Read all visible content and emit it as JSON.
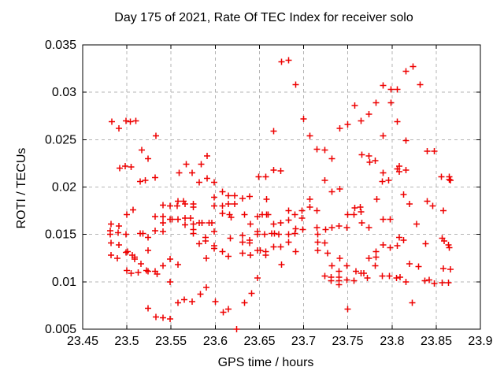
{
  "window": {
    "background": "#ffffff"
  },
  "chart_data": {
    "type": "scatter",
    "title": "Day 175 of 2021, Rate Of TEC Index for receiver solo",
    "xlabel": "GPS time / hours",
    "ylabel": "ROTI / TECUs",
    "xlim": [
      23.45,
      23.9
    ],
    "ylim": [
      0.005,
      0.035
    ],
    "xticks": [
      23.45,
      23.5,
      23.55,
      23.6,
      23.65,
      23.7,
      23.75,
      23.8,
      23.85,
      23.9
    ],
    "xtick_labels": [
      "23.45",
      "23.5",
      "23.55",
      "23.6",
      "23.65",
      "23.7",
      "23.75",
      "23.8",
      "23.85",
      "23.9"
    ],
    "yticks": [
      0.005,
      0.01,
      0.015,
      0.02,
      0.025,
      0.03,
      0.035
    ],
    "ytick_labels": [
      "0.005",
      "0.01",
      "0.015",
      "0.02",
      "0.025",
      "0.03",
      "0.035"
    ],
    "grid": true,
    "grid_style": "dashed",
    "legend": "none",
    "marker": "plus",
    "marker_color": "#ee0000",
    "grid_color": "#b4b4b4",
    "axis_color": "#000000",
    "series": [
      {
        "name": "ROTI",
        "points": [
          [
            23.481,
            0.0154
          ],
          [
            23.481,
            0.015
          ],
          [
            23.482,
            0.0161
          ],
          [
            23.482,
            0.0141
          ],
          [
            23.482,
            0.0128
          ],
          [
            23.483,
            0.0269
          ],
          [
            23.489,
            0.0125
          ],
          [
            23.49,
            0.0152
          ],
          [
            23.491,
            0.0262
          ],
          [
            23.491,
            0.0159
          ],
          [
            23.491,
            0.0139
          ],
          [
            23.492,
            0.022
          ],
          [
            23.498,
            0.0222
          ],
          [
            23.499,
            0.027
          ],
          [
            23.499,
            0.015
          ],
          [
            23.499,
            0.0131
          ],
          [
            23.5,
            0.0171
          ],
          [
            23.5,
            0.0112
          ],
          [
            23.501,
            0.0132
          ],
          [
            23.504,
            0.0269
          ],
          [
            23.505,
            0.0221
          ],
          [
            23.505,
            0.0109
          ],
          [
            23.506,
            0.0128
          ],
          [
            23.507,
            0.0176
          ],
          [
            23.509,
            0.0126
          ],
          [
            23.509,
            0.0124
          ],
          [
            23.51,
            0.027
          ],
          [
            23.513,
            0.011
          ],
          [
            23.515,
            0.0206
          ],
          [
            23.515,
            0.0151
          ],
          [
            23.516,
            0.0119
          ],
          [
            23.517,
            0.0239
          ],
          [
            23.518,
            0.0151
          ],
          [
            23.521,
            0.0207
          ],
          [
            23.522,
            0.0112
          ],
          [
            23.524,
            0.023
          ],
          [
            23.524,
            0.0147
          ],
          [
            23.524,
            0.0133
          ],
          [
            23.524,
            0.0111
          ],
          [
            23.524,
            0.0072
          ],
          [
            23.532,
            0.021
          ],
          [
            23.532,
            0.0169
          ],
          [
            23.532,
            0.0154
          ],
          [
            23.532,
            0.0111
          ],
          [
            23.533,
            0.0254
          ],
          [
            23.533,
            0.0063
          ],
          [
            23.534,
            0.0108
          ],
          [
            23.541,
            0.0181
          ],
          [
            23.541,
            0.0169
          ],
          [
            23.541,
            0.0162
          ],
          [
            23.541,
            0.0153
          ],
          [
            23.541,
            0.0117
          ],
          [
            23.541,
            0.0062
          ],
          [
            23.549,
            0.018
          ],
          [
            23.549,
            0.0166
          ],
          [
            23.549,
            0.0124
          ],
          [
            23.549,
            0.01
          ],
          [
            23.549,
            0.0061
          ],
          [
            23.551,
            0.0166
          ],
          [
            23.557,
            0.018
          ],
          [
            23.558,
            0.0185
          ],
          [
            23.558,
            0.0166
          ],
          [
            23.558,
            0.0118
          ],
          [
            23.558,
            0.0078
          ],
          [
            23.559,
            0.0215
          ],
          [
            23.564,
            0.0185
          ],
          [
            23.565,
            0.0081
          ],
          [
            23.566,
            0.0182
          ],
          [
            23.566,
            0.0167
          ],
          [
            23.566,
            0.016
          ],
          [
            23.567,
            0.0224
          ],
          [
            23.572,
            0.0167
          ],
          [
            23.574,
            0.0215
          ],
          [
            23.574,
            0.0079
          ],
          [
            23.575,
            0.0182
          ],
          [
            23.575,
            0.0179
          ],
          [
            23.575,
            0.0161
          ],
          [
            23.575,
            0.0155
          ],
          [
            23.575,
            0.0151
          ],
          [
            23.582,
            0.0205
          ],
          [
            23.582,
            0.0162
          ],
          [
            23.582,
            0.014
          ],
          [
            23.583,
            0.0087
          ],
          [
            23.584,
            0.0224
          ],
          [
            23.585,
            0.0162
          ],
          [
            23.589,
            0.0147
          ],
          [
            23.589,
            0.0143
          ],
          [
            23.59,
            0.0125
          ],
          [
            23.59,
            0.0094
          ],
          [
            23.591,
            0.0233
          ],
          [
            23.591,
            0.0209
          ],
          [
            23.593,
            0.0162
          ],
          [
            23.596,
            0.0162
          ],
          [
            23.599,
            0.0205
          ],
          [
            23.599,
            0.0189
          ],
          [
            23.599,
            0.018
          ],
          [
            23.599,
            0.0153
          ],
          [
            23.599,
            0.0138
          ],
          [
            23.599,
            0.0135
          ],
          [
            23.6,
            0.0079
          ],
          [
            23.608,
            0.0195
          ],
          [
            23.608,
            0.018
          ],
          [
            23.608,
            0.0172
          ],
          [
            23.608,
            0.0132
          ],
          [
            23.609,
            0.0068
          ],
          [
            23.615,
            0.0191
          ],
          [
            23.615,
            0.0182
          ],
          [
            23.615,
            0.0127
          ],
          [
            23.615,
            0.0071
          ],
          [
            23.616,
            0.0171
          ],
          [
            23.617,
            0.0146
          ],
          [
            23.618,
            0.0168
          ],
          [
            23.622,
            0.0191
          ],
          [
            23.622,
            0.0182
          ],
          [
            23.624,
            0.005
          ],
          [
            23.631,
            0.0188
          ],
          [
            23.631,
            0.0149
          ],
          [
            23.631,
            0.0142
          ],
          [
            23.631,
            0.013
          ],
          [
            23.633,
            0.0171
          ],
          [
            23.633,
            0.0078
          ],
          [
            23.639,
            0.019
          ],
          [
            23.639,
            0.0144
          ],
          [
            23.639,
            0.0141
          ],
          [
            23.64,
            0.0161
          ],
          [
            23.64,
            0.0128
          ],
          [
            23.641,
            0.0088
          ],
          [
            23.648,
            0.0169
          ],
          [
            23.648,
            0.0153
          ],
          [
            23.648,
            0.015
          ],
          [
            23.648,
            0.0133
          ],
          [
            23.648,
            0.0104
          ],
          [
            23.649,
            0.0211
          ],
          [
            23.651,
            0.0133
          ],
          [
            23.653,
            0.0171
          ],
          [
            23.656,
            0.015
          ],
          [
            23.657,
            0.0211
          ],
          [
            23.657,
            0.0132
          ],
          [
            23.657,
            0.0128
          ],
          [
            23.658,
            0.0187
          ],
          [
            23.658,
            0.0171
          ],
          [
            23.66,
            0.0171
          ],
          [
            23.664,
            0.0151
          ],
          [
            23.666,
            0.0259
          ],
          [
            23.666,
            0.0218
          ],
          [
            23.666,
            0.0161
          ],
          [
            23.666,
            0.0137
          ],
          [
            23.667,
            0.0151
          ],
          [
            23.672,
            0.015
          ],
          [
            23.674,
            0.0217
          ],
          [
            23.674,
            0.0162
          ],
          [
            23.674,
            0.0137
          ],
          [
            23.675,
            0.0332
          ],
          [
            23.675,
            0.0118
          ],
          [
            23.683,
            0.0334
          ],
          [
            23.683,
            0.0175
          ],
          [
            23.683,
            0.0165
          ],
          [
            23.683,
            0.015
          ],
          [
            23.683,
            0.0142
          ],
          [
            23.69,
            0.0171
          ],
          [
            23.69,
            0.0151
          ],
          [
            23.691,
            0.0308
          ],
          [
            23.691,
            0.0156
          ],
          [
            23.691,
            0.0132
          ],
          [
            23.698,
            0.0175
          ],
          [
            23.698,
            0.0167
          ],
          [
            23.699,
            0.0155
          ],
          [
            23.7,
            0.0272
          ],
          [
            23.707,
            0.0254
          ],
          [
            23.707,
            0.0187
          ],
          [
            23.707,
            0.0179
          ],
          [
            23.715,
            0.024
          ],
          [
            23.715,
            0.0175
          ],
          [
            23.715,
            0.0157
          ],
          [
            23.716,
            0.015
          ],
          [
            23.716,
            0.0142
          ],
          [
            23.716,
            0.0133
          ],
          [
            23.724,
            0.0239
          ],
          [
            23.724,
            0.0207
          ],
          [
            23.724,
            0.0141
          ],
          [
            23.724,
            0.0106
          ],
          [
            23.725,
            0.0155
          ],
          [
            23.727,
            0.013
          ],
          [
            23.731,
            0.0105
          ],
          [
            23.731,
            0.0101
          ],
          [
            23.732,
            0.023
          ],
          [
            23.732,
            0.0195
          ],
          [
            23.732,
            0.0157
          ],
          [
            23.732,
            0.0117
          ],
          [
            23.74,
            0.0159
          ],
          [
            23.74,
            0.0111
          ],
          [
            23.74,
            0.0105
          ],
          [
            23.74,
            0.0101
          ],
          [
            23.74,
            0.0097
          ],
          [
            23.741,
            0.0262
          ],
          [
            23.741,
            0.0198
          ],
          [
            23.741,
            0.0125
          ],
          [
            23.749,
            0.0157
          ],
          [
            23.749,
            0.0117
          ],
          [
            23.749,
            0.0102
          ],
          [
            23.75,
            0.0266
          ],
          [
            23.75,
            0.0171
          ],
          [
            23.75,
            0.0071
          ],
          [
            23.757,
            0.0171
          ],
          [
            23.757,
            0.0101
          ],
          [
            23.758,
            0.0286
          ],
          [
            23.758,
            0.0178
          ],
          [
            23.759,
            0.0111
          ],
          [
            23.764,
            0.0179
          ],
          [
            23.765,
            0.027
          ],
          [
            23.765,
            0.0174
          ],
          [
            23.765,
            0.0109
          ],
          [
            23.766,
            0.0234
          ],
          [
            23.766,
            0.0162
          ],
          [
            23.768,
            0.0109
          ],
          [
            23.772,
            0.0104
          ],
          [
            23.774,
            0.0277
          ],
          [
            23.774,
            0.0233
          ],
          [
            23.774,
            0.0157
          ],
          [
            23.774,
            0.0125
          ],
          [
            23.775,
            0.0226
          ],
          [
            23.781,
            0.0228
          ],
          [
            23.781,
            0.0117
          ],
          [
            23.782,
            0.0289
          ],
          [
            23.782,
            0.0132
          ],
          [
            23.782,
            0.0126
          ],
          [
            23.783,
            0.0187
          ],
          [
            23.789,
            0.0206
          ],
          [
            23.789,
            0.0106
          ],
          [
            23.79,
            0.0307
          ],
          [
            23.79,
            0.0254
          ],
          [
            23.79,
            0.0215
          ],
          [
            23.79,
            0.0166
          ],
          [
            23.79,
            0.0139
          ],
          [
            23.796,
            0.0207
          ],
          [
            23.797,
            0.0106
          ],
          [
            23.798,
            0.0166
          ],
          [
            23.798,
            0.0136
          ],
          [
            23.799,
            0.0303
          ],
          [
            23.799,
            0.0289
          ],
          [
            23.805,
            0.0104
          ],
          [
            23.806,
            0.0303
          ],
          [
            23.806,
            0.0269
          ],
          [
            23.806,
            0.0138
          ],
          [
            23.806,
            0.0219
          ],
          [
            23.808,
            0.0222
          ],
          [
            23.808,
            0.0216
          ],
          [
            23.808,
            0.0147
          ],
          [
            23.809,
            0.0105
          ],
          [
            23.813,
            0.0192
          ],
          [
            23.813,
            0.0144
          ],
          [
            23.816,
            0.0322
          ],
          [
            23.816,
            0.0249
          ],
          [
            23.816,
            0.0218
          ],
          [
            23.816,
            0.01
          ],
          [
            23.82,
            0.0182
          ],
          [
            23.82,
            0.0119
          ],
          [
            23.823,
            0.0078
          ],
          [
            23.824,
            0.0327
          ],
          [
            23.828,
            0.0161
          ],
          [
            23.83,
            0.0116
          ],
          [
            23.832,
            0.0308
          ],
          [
            23.837,
            0.0101
          ],
          [
            23.838,
            0.014
          ],
          [
            23.84,
            0.0238
          ],
          [
            23.84,
            0.0185
          ],
          [
            23.842,
            0.0102
          ],
          [
            23.846,
            0.018
          ],
          [
            23.848,
            0.0238
          ],
          [
            23.848,
            0.0098
          ],
          [
            23.856,
            0.0211
          ],
          [
            23.857,
            0.0146
          ],
          [
            23.857,
            0.0099
          ],
          [
            23.858,
            0.0175
          ],
          [
            23.858,
            0.0114
          ],
          [
            23.859,
            0.0143
          ],
          [
            23.864,
            0.0139
          ],
          [
            23.864,
            0.0099
          ],
          [
            23.865,
            0.0211
          ],
          [
            23.865,
            0.0136
          ],
          [
            23.865,
            0.0208
          ],
          [
            23.866,
            0.0113
          ],
          [
            23.866,
            0.0207
          ]
        ]
      }
    ]
  }
}
